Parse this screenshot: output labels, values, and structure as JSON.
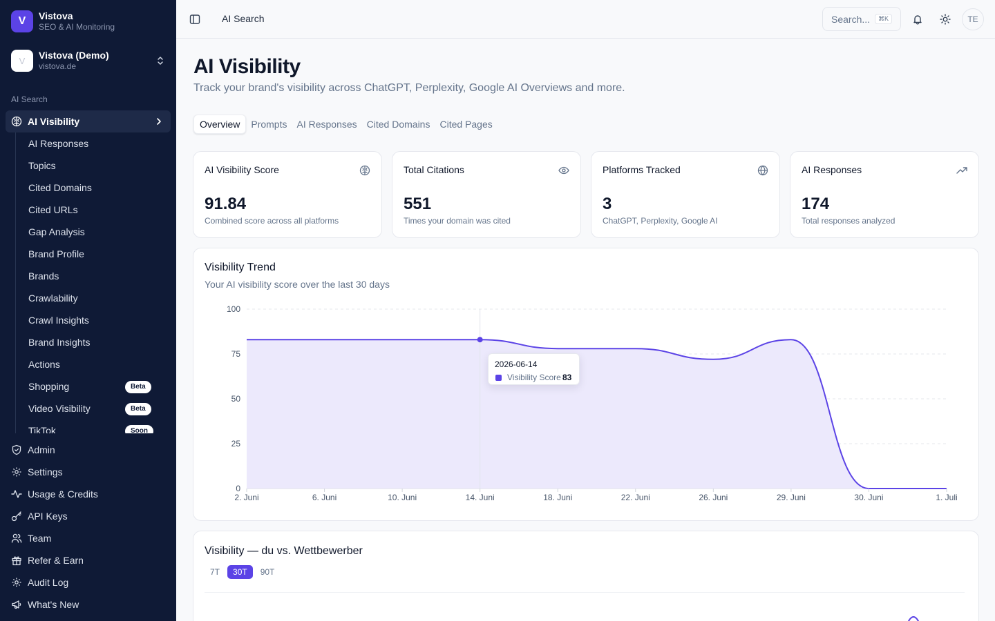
{
  "brand": {
    "logo_letter": "V",
    "name": "Vistova",
    "subtitle": "SEO & AI Monitoring"
  },
  "workspace": {
    "avatar_letter": "V",
    "name": "Vistova (Demo)",
    "domain": "vistova.de"
  },
  "sidebar": {
    "group_label": "AI Search",
    "active_item": {
      "label": "AI Visibility",
      "icon": "brain-icon"
    },
    "sub_items": [
      {
        "label": "AI Responses"
      },
      {
        "label": "Topics"
      },
      {
        "label": "Cited Domains"
      },
      {
        "label": "Cited URLs"
      },
      {
        "label": "Gap Analysis"
      },
      {
        "label": "Brand Profile"
      },
      {
        "label": "Brands"
      },
      {
        "label": "Crawlability"
      },
      {
        "label": "Crawl Insights"
      },
      {
        "label": "Brand Insights"
      },
      {
        "label": "Actions"
      },
      {
        "label": "Shopping",
        "badge": "Beta"
      },
      {
        "label": "Video Visibility",
        "badge": "Beta"
      },
      {
        "label": "TikTok",
        "badge": "Soon"
      }
    ],
    "bottom_items": [
      {
        "label": "Admin",
        "icon": "shield-icon"
      },
      {
        "label": "Settings",
        "icon": "gear-icon"
      },
      {
        "label": "Usage & Credits",
        "icon": "activity-icon"
      },
      {
        "label": "API Keys",
        "icon": "key-icon"
      },
      {
        "label": "Team",
        "icon": "users-icon"
      },
      {
        "label": "Refer & Earn",
        "icon": "gift-icon"
      },
      {
        "label": "Audit Log",
        "icon": "gear-icon"
      },
      {
        "label": "What's New",
        "icon": "megaphone-icon"
      }
    ]
  },
  "header": {
    "breadcrumb": "AI Search",
    "search_placeholder": "Search...",
    "search_shortcut": "⌘K",
    "user_initials": "TE"
  },
  "page": {
    "title": "AI Visibility",
    "subtitle": "Track your brand's visibility across ChatGPT, Perplexity, Google AI Overviews and more.",
    "tabs": [
      {
        "label": "Overview",
        "active": true
      },
      {
        "label": "Prompts"
      },
      {
        "label": "AI Responses"
      },
      {
        "label": "Cited Domains"
      },
      {
        "label": "Cited Pages"
      }
    ]
  },
  "stats": [
    {
      "title": "AI Visibility Score",
      "value": "91.84",
      "desc": "Combined score across all platforms",
      "icon": "brain-icon"
    },
    {
      "title": "Total Citations",
      "value": "551",
      "desc": "Times your domain was cited",
      "icon": "eye-icon"
    },
    {
      "title": "Platforms Tracked",
      "value": "3",
      "desc": "ChatGPT, Perplexity, Google AI",
      "icon": "globe-icon"
    },
    {
      "title": "AI Responses",
      "value": "174",
      "desc": "Total responses analyzed",
      "icon": "trending-up-icon"
    }
  ],
  "trend": {
    "title": "Visibility Trend",
    "subtitle": "Your AI visibility score over the last 30 days",
    "tooltip": {
      "date": "2026-06-14",
      "label": "Visibility Score",
      "value": "83"
    }
  },
  "chart_data": {
    "type": "area",
    "title": "Visibility Trend",
    "x": [
      "2. Juni",
      "6. Juni",
      "10. Juni",
      "14. Juni",
      "18. Juni",
      "22. Juni",
      "26. Juni",
      "29. Juni",
      "30. Juni",
      "1. Juli"
    ],
    "series": [
      {
        "name": "Visibility Score",
        "values": [
          83,
          83,
          83,
          83,
          78,
          78,
          72,
          83,
          0,
          0
        ]
      }
    ],
    "ylim": [
      0,
      100
    ],
    "yticks": [
      0,
      25,
      50,
      75,
      100
    ],
    "grid": true,
    "color": "#5b43e6",
    "fill": "#ece9fc"
  },
  "competitors": {
    "title": "Visibility — du vs. Wettbewerber",
    "ranges": [
      {
        "label": "7T"
      },
      {
        "label": "30T",
        "active": true
      },
      {
        "label": "90T"
      }
    ]
  },
  "colors": {
    "sidebar_bg": "#0f1a36",
    "accent": "#5b43e6"
  }
}
